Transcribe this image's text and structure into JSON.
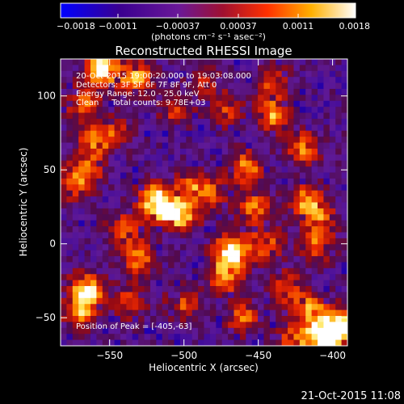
{
  "chart_data": {
    "type": "heatmap",
    "title": "Reconstructed RHESSI Image",
    "xlabel": "Heliocentric X (arcsec)",
    "ylabel": "Heliocentric Y (arcsec)",
    "xlim": [
      -583,
      -390
    ],
    "ylim": [
      -69,
      125
    ],
    "x_ticks": [
      -550,
      -500,
      -450,
      -400
    ],
    "x_tick_labels": [
      "−550",
      "−500",
      "−450",
      "−400"
    ],
    "y_ticks": [
      -50,
      0,
      50,
      100
    ],
    "y_tick_labels": [
      "−50",
      "0",
      "50",
      "100"
    ],
    "grid": false,
    "colorbar": {
      "min": -0.0018,
      "max": 0.0018,
      "ticks": [
        -0.0018,
        -0.0011,
        -0.00037,
        0.00037,
        0.0011,
        0.0018
      ],
      "tick_labels": [
        "−0.0018",
        "−0.0011",
        "−0.00037",
        "0.00037",
        "0.0011",
        "0.0018"
      ],
      "units_label": "(photons cm⁻² s⁻¹ asec⁻²)",
      "colormap": [
        "#0000ff",
        "#3a00a0",
        "#5a1080",
        "#6a1898",
        "#b01010",
        "#ff4000",
        "#ffb000",
        "#ffff80",
        "#ffffff"
      ]
    },
    "annotations": [
      "20-Oct-2015 19:00:20.000 to 19:03:08.000",
      "Detectors: 3F 5F 6F 7F 8F 9F, Att 0",
      "Energy Range: 12.0 - 25.0 keV",
      "Clean     Total counts: 9.78E+03"
    ],
    "peak_label": "Position of Peak = [-405,-63]",
    "peak": {
      "x": -405,
      "y": -63
    },
    "bright_regions": [
      {
        "x": -555,
        "y": 118,
        "intensity": 0.95
      },
      {
        "x": -568,
        "y": 95,
        "intensity": 0.55
      },
      {
        "x": -532,
        "y": 112,
        "intensity": 0.65
      },
      {
        "x": -505,
        "y": 90,
        "intensity": 0.4
      },
      {
        "x": -470,
        "y": 90,
        "intensity": 0.45
      },
      {
        "x": -440,
        "y": 88,
        "intensity": 0.65
      },
      {
        "x": -420,
        "y": 65,
        "intensity": 0.55
      },
      {
        "x": -545,
        "y": 75,
        "intensity": 0.35
      },
      {
        "x": -520,
        "y": 30,
        "intensity": 0.75
      },
      {
        "x": -510,
        "y": 22,
        "intensity": 0.6
      },
      {
        "x": -500,
        "y": 18,
        "intensity": 0.5
      },
      {
        "x": -495,
        "y": 38,
        "intensity": 0.5
      },
      {
        "x": -575,
        "y": 40,
        "intensity": 0.45
      },
      {
        "x": -565,
        "y": 50,
        "intensity": 0.45
      },
      {
        "x": -540,
        "y": 10,
        "intensity": 0.5
      },
      {
        "x": -480,
        "y": 35,
        "intensity": 0.4
      },
      {
        "x": -468,
        "y": -5,
        "intensity": 0.95
      },
      {
        "x": -472,
        "y": -22,
        "intensity": 0.65
      },
      {
        "x": -452,
        "y": 25,
        "intensity": 0.55
      },
      {
        "x": -458,
        "y": 52,
        "intensity": 0.6
      },
      {
        "x": -445,
        "y": 0,
        "intensity": 0.55
      },
      {
        "x": -418,
        "y": 30,
        "intensity": 0.5
      },
      {
        "x": -410,
        "y": 0,
        "intensity": 0.55
      },
      {
        "x": -410,
        "y": 20,
        "intensity": 0.5
      },
      {
        "x": -565,
        "y": -30,
        "intensity": 0.8
      },
      {
        "x": -570,
        "y": -45,
        "intensity": 0.65
      },
      {
        "x": -535,
        "y": -40,
        "intensity": 0.5
      },
      {
        "x": -530,
        "y": -10,
        "intensity": 0.55
      },
      {
        "x": -500,
        "y": -40,
        "intensity": 0.45
      },
      {
        "x": -460,
        "y": -50,
        "intensity": 0.5
      },
      {
        "x": -430,
        "y": -30,
        "intensity": 0.5
      },
      {
        "x": -405,
        "y": -63,
        "intensity": 1.0
      },
      {
        "x": -395,
        "y": -55,
        "intensity": 0.85
      },
      {
        "x": -415,
        "y": -45,
        "intensity": 0.6
      },
      {
        "x": -425,
        "y": -65,
        "intensity": 0.55
      },
      {
        "x": -560,
        "y": 70,
        "intensity": 0.55
      },
      {
        "x": -440,
        "y": 110,
        "intensity": 0.45
      },
      {
        "x": -485,
        "y": 110,
        "intensity": 0.3
      }
    ]
  },
  "footer": {
    "timestamp": "21-Oct-2015 11:08"
  }
}
